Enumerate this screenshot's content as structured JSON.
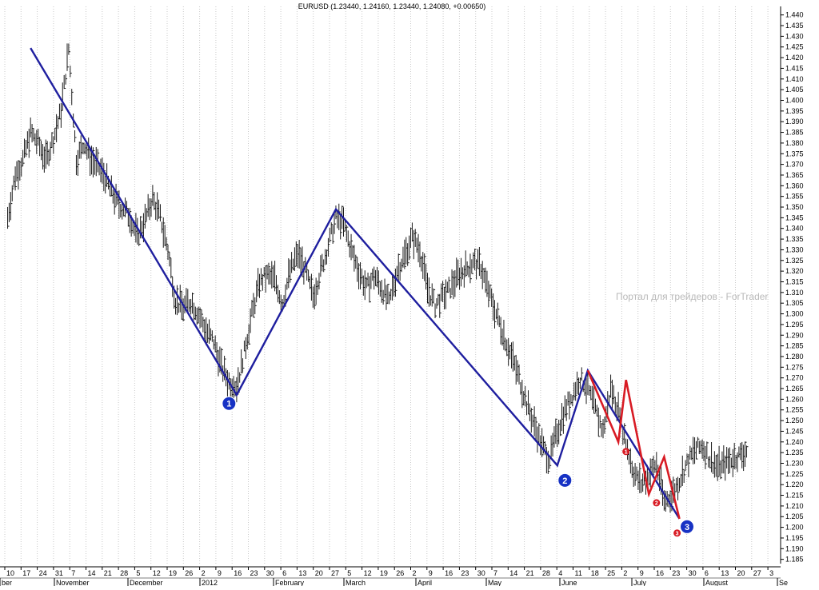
{
  "chart_data": {
    "type": "ohlc-bar",
    "title": "EURUSD (1.23440, 1.24160, 1.23440, 1.24080, +0.00650)",
    "watermark": "Портал для трейдеров - ForTrader",
    "ylim": [
      1.183,
      1.444
    ],
    "y_ticks": [
      "1.440",
      "1.435",
      "1.430",
      "1.425",
      "1.420",
      "1.415",
      "1.410",
      "1.405",
      "1.400",
      "1.395",
      "1.390",
      "1.385",
      "1.380",
      "1.375",
      "1.370",
      "1.365",
      "1.360",
      "1.355",
      "1.350",
      "1.345",
      "1.340",
      "1.335",
      "1.330",
      "1.325",
      "1.320",
      "1.315",
      "1.310",
      "1.305",
      "1.300",
      "1.295",
      "1.290",
      "1.285",
      "1.280",
      "1.275",
      "1.270",
      "1.265",
      "1.260",
      "1.255",
      "1.250",
      "1.245",
      "1.240",
      "1.235",
      "1.230",
      "1.225",
      "1.220",
      "1.215",
      "1.210",
      "1.205",
      "1.200",
      "1.195",
      "1.190",
      "1.185"
    ],
    "x_day_ticks": [
      "10",
      "17",
      "24",
      "31",
      "7",
      "14",
      "21",
      "28",
      "5",
      "12",
      "19",
      "26",
      "2",
      "9",
      "16",
      "23",
      "30",
      "6",
      "13",
      "20",
      "27",
      "5",
      "12",
      "19",
      "26",
      "2",
      "9",
      "16",
      "23",
      "30",
      "7",
      "14",
      "21",
      "28",
      "4",
      "11",
      "18",
      "25",
      "2",
      "9",
      "16",
      "23",
      "30",
      "6",
      "13",
      "20",
      "27",
      "3"
    ],
    "x_month_labels": [
      "ber",
      "November",
      "December",
      "2012",
      "February",
      "March",
      "April",
      "May",
      "June",
      "July",
      "August",
      "Se"
    ],
    "price_points": [
      [
        0,
        1.345
      ],
      [
        1,
        1.365
      ],
      [
        2,
        1.372
      ],
      [
        3,
        1.385
      ],
      [
        4,
        1.38
      ],
      [
        5,
        1.372
      ],
      [
        6,
        1.382
      ],
      [
        7,
        1.395
      ],
      [
        8,
        1.424
      ],
      [
        9,
        1.372
      ],
      [
        10,
        1.38
      ],
      [
        11,
        1.372
      ],
      [
        12,
        1.368
      ],
      [
        13,
        1.362
      ],
      [
        14,
        1.354
      ],
      [
        15,
        1.35
      ],
      [
        16,
        1.346
      ],
      [
        17,
        1.336
      ],
      [
        18,
        1.344
      ],
      [
        19,
        1.354
      ],
      [
        20,
        1.345
      ],
      [
        21,
        1.33
      ],
      [
        22,
        1.306
      ],
      [
        23,
        1.303
      ],
      [
        24,
        1.306
      ],
      [
        25,
        1.3
      ],
      [
        26,
        1.292
      ],
      [
        27,
        1.287
      ],
      [
        28,
        1.275
      ],
      [
        29,
        1.268
      ],
      [
        30,
        1.266
      ],
      [
        31,
        1.282
      ],
      [
        32,
        1.3
      ],
      [
        33,
        1.315
      ],
      [
        34,
        1.318
      ],
      [
        35,
        1.316
      ],
      [
        36,
        1.305
      ],
      [
        37,
        1.32
      ],
      [
        38,
        1.328
      ],
      [
        39,
        1.32
      ],
      [
        40,
        1.308
      ],
      [
        41,
        1.32
      ],
      [
        42,
        1.332
      ],
      [
        43,
        1.345
      ],
      [
        44,
        1.342
      ],
      [
        45,
        1.33
      ],
      [
        46,
        1.32
      ],
      [
        47,
        1.312
      ],
      [
        48,
        1.318
      ],
      [
        49,
        1.312
      ],
      [
        50,
        1.305
      ],
      [
        51,
        1.32
      ],
      [
        52,
        1.327
      ],
      [
        53,
        1.336
      ],
      [
        54,
        1.33
      ],
      [
        55,
        1.312
      ],
      [
        56,
        1.304
      ],
      [
        57,
        1.308
      ],
      [
        58,
        1.312
      ],
      [
        59,
        1.318
      ],
      [
        60,
        1.321
      ],
      [
        61,
        1.324
      ],
      [
        62,
        1.322
      ],
      [
        63,
        1.31
      ],
      [
        64,
        1.3
      ],
      [
        65,
        1.29
      ],
      [
        66,
        1.28
      ],
      [
        67,
        1.27
      ],
      [
        68,
        1.258
      ],
      [
        69,
        1.248
      ],
      [
        70,
        1.238
      ],
      [
        71,
        1.232
      ],
      [
        72,
        1.245
      ],
      [
        73,
        1.255
      ],
      [
        74,
        1.262
      ],
      [
        75,
        1.27
      ],
      [
        76,
        1.265
      ],
      [
        77,
        1.255
      ],
      [
        78,
        1.245
      ],
      [
        79,
        1.265
      ],
      [
        80,
        1.255
      ],
      [
        81,
        1.24
      ],
      [
        82,
        1.226
      ],
      [
        83,
        1.22
      ],
      [
        84,
        1.225
      ],
      [
        85,
        1.23
      ],
      [
        86,
        1.212
      ],
      [
        87,
        1.215
      ],
      [
        88,
        1.222
      ],
      [
        89,
        1.23
      ],
      [
        90,
        1.236
      ],
      [
        91,
        1.238
      ],
      [
        92,
        1.232
      ],
      [
        93,
        1.228
      ],
      [
        94,
        1.23
      ],
      [
        95,
        1.232
      ],
      [
        96,
        1.234
      ],
      [
        97,
        1.236
      ]
    ],
    "wave_lines": [
      {
        "name": "major",
        "color": "#1f1f9f",
        "points": [
          [
            3,
            1.4245
          ],
          [
            30,
            1.262
          ],
          [
            43,
            1.349
          ],
          [
            72,
            1.229
          ],
          [
            76,
            1.2735
          ],
          [
            88,
            1.204
          ]
        ]
      },
      {
        "name": "minor",
        "color": "#d81b24",
        "points": [
          [
            76,
            1.2735
          ],
          [
            80,
            1.24
          ],
          [
            81,
            1.269
          ],
          [
            84,
            1.2155
          ],
          [
            86,
            1.233
          ],
          [
            88,
            1.204
          ]
        ]
      }
    ],
    "markers": [
      {
        "label": "1",
        "type": "major",
        "x": 29,
        "y": 1.258
      },
      {
        "label": "2",
        "type": "major",
        "x": 73,
        "y": 1.222
      },
      {
        "label": "3",
        "type": "major",
        "x": 89,
        "y": 1.2003
      },
      {
        "label": "1",
        "type": "minor",
        "x": 81,
        "y": 1.2355
      },
      {
        "label": "2",
        "type": "minor",
        "x": 85,
        "y": 1.2115
      },
      {
        "label": "3",
        "type": "minor",
        "x": 87.7,
        "y": 1.1973
      }
    ]
  }
}
